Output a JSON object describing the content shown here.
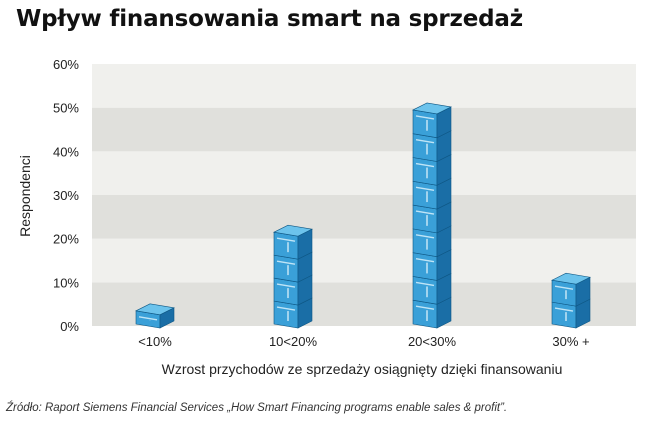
{
  "title": "Wpływ finansowania smart na sprzedaż",
  "source_note": "Źródło: Raport Siemens Financial Services „How Smart Financing programs enable sales & profit”.",
  "colors": {
    "band_dark": "#e0e0dc",
    "band_light": "#f0f0ed",
    "box_front": "#3aa0d8",
    "box_top": "#6cc3ec",
    "box_side": "#1a6ea6",
    "box_edge": "#0e5784"
  },
  "chart_data": {
    "type": "bar",
    "title": "Wpływ finansowania smart na sprzedaż",
    "xlabel": "Wzrost przychodów ze sprzedaży osiągnięty dzięki finansowaniu",
    "ylabel": "Respondenci",
    "categories": [
      "<10%",
      "10<20%",
      "20<30%",
      "30% +"
    ],
    "values": [
      6,
      24,
      52,
      13
    ],
    "ylim": [
      0,
      60
    ],
    "yticks": [
      0,
      10,
      20,
      30,
      40,
      50,
      60
    ],
    "ytick_labels": [
      "0%",
      "10%",
      "20%",
      "30%",
      "40%",
      "50%",
      "60%"
    ],
    "grid": "alternating horizontal bands",
    "legend": "none",
    "unit_per_box": 5.5
  }
}
